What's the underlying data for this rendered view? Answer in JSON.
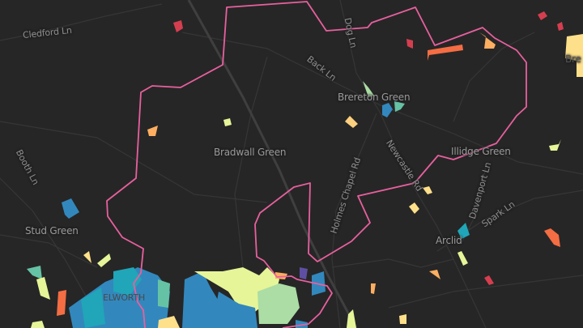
{
  "map": {
    "labels": {
      "cledford_ln": "Cledford Ln",
      "dog_ln": "Dog Ln",
      "back_ln": "Back Ln",
      "brereton_green": "Brereton Green",
      "bradwall_green": "Bradwall Green",
      "illidge_green": "Illidge Green",
      "booth_ln": "Booth Ln",
      "stud_green": "Stud Green",
      "holmes_chapel_rd": "Holmes Chapel Rd",
      "newcastle_rd": "Newcastle Rd",
      "davenport_ln": "Davenport Ln",
      "spark_ln": "Spark Ln",
      "arclid": "Arclid",
      "elworth": "ELWORTH",
      "brereton_partial": "Bre"
    },
    "colors": {
      "background": "#262626",
      "roads": "#3a3a3a",
      "railway": "#404040",
      "boundary": "#e8609e",
      "ramp": [
        "#5e4fa2",
        "#3288bd",
        "#20a6b8",
        "#66c2a5",
        "#abdda4",
        "#e6f598",
        "#fee08b",
        "#fdae61",
        "#f46d43",
        "#d53e4f"
      ]
    }
  }
}
